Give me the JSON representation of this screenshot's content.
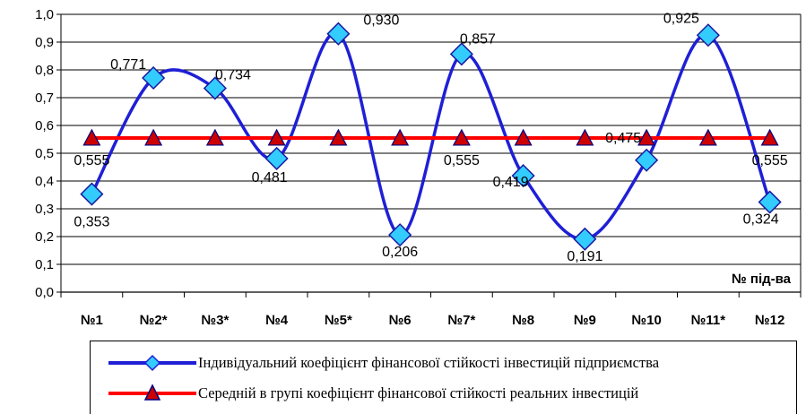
{
  "chart_data": {
    "type": "line",
    "categories": [
      "№1",
      "№2*",
      "№3*",
      "№4",
      "№5*",
      "№6",
      "№7*",
      "№8",
      "№9",
      "№10",
      "№11*",
      "№12"
    ],
    "series": [
      {
        "name": "Індивідуальний коефіцієнт фінансової стійкості інвестицій підприємства",
        "values": [
          0.353,
          0.771,
          0.734,
          0.481,
          0.93,
          0.206,
          0.857,
          0.419,
          0.191,
          0.475,
          0.925,
          0.324
        ],
        "color": "#1f1fd6",
        "marker": "diamond",
        "marker_color": "#33ccff",
        "labels": [
          "0,353",
          "0,771",
          "0,734",
          "0,481",
          "0,930",
          "0,206",
          "0,857",
          "0,419",
          "0,191",
          "0,475",
          "0,925",
          "0,324"
        ]
      },
      {
        "name": "Середній в групі коефіцієнт фінансової стійкості реальних інвестицій",
        "values": [
          0.555,
          0.555,
          0.555,
          0.555,
          0.555,
          0.555,
          0.555,
          0.555,
          0.555,
          0.555,
          0.555,
          0.555
        ],
        "color": "#ff0000",
        "marker": "triangle",
        "marker_color": "#cc0000",
        "labels": [
          "0,555",
          "",
          "",
          "",
          "",
          "",
          "0,555",
          "",
          "",
          "",
          "",
          "0,555"
        ]
      }
    ],
    "xlabel": "№ під-ва",
    "ylabel": "",
    "ylim": [
      0,
      1.0
    ],
    "yticks": [
      "0,0",
      "0,1",
      "0,2",
      "0,3",
      "0,4",
      "0,5",
      "0,6",
      "0,7",
      "0,8",
      "0,9",
      "1,0"
    ],
    "grid": true,
    "legend_position": "bottom"
  }
}
